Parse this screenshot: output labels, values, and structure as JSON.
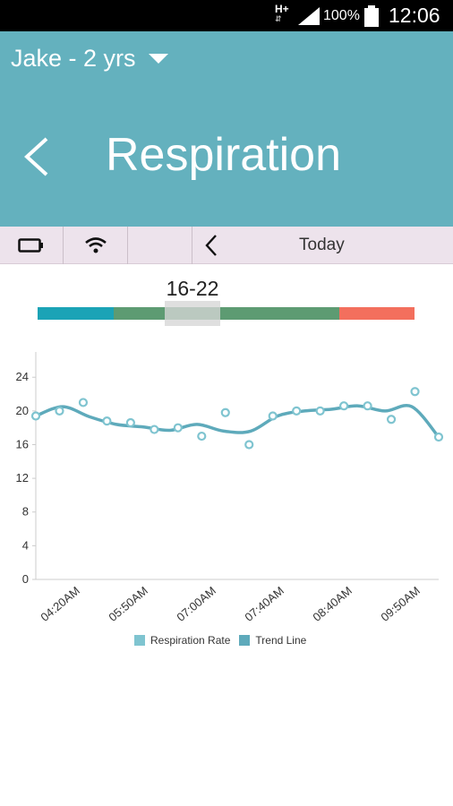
{
  "status_bar": {
    "network": "H+",
    "network_arrows": "⇵",
    "battery_percent": "100%",
    "time": "12:06"
  },
  "header": {
    "profile": "Jake - 2 yrs",
    "title": "Respiration"
  },
  "toolbar": {
    "date_label": "Today"
  },
  "range": {
    "label": "16-22",
    "colors": {
      "low": "#1ba3b6",
      "normal": "#5d9b72",
      "high": "#f36f5d"
    }
  },
  "chart_data": {
    "type": "scatter",
    "y_ticks": [
      0,
      4,
      8,
      12,
      16,
      20,
      24
    ],
    "ylim": [
      0,
      27
    ],
    "x_tick_labels": [
      "04:20AM",
      "05:50AM",
      "07:00AM",
      "07:40AM",
      "08:40AM",
      "09:50AM"
    ],
    "series": [
      {
        "name": "Respiration Rate",
        "color": "#7fc4d0",
        "values": [
          19.4,
          20.0,
          21.0,
          18.8,
          18.6,
          17.8,
          18.0,
          17.0,
          19.8,
          16.0,
          19.4,
          20.0,
          20.0,
          20.6,
          20.6,
          19.0,
          22.3,
          16.9
        ]
      },
      {
        "name": "Trend Line",
        "color": "#5eaabb",
        "values": [
          19.4,
          20.5,
          19.3,
          18.4,
          18.1,
          17.7,
          18.4,
          17.6,
          17.6,
          19.4,
          20.0,
          20.2,
          20.6,
          20.0,
          20.5,
          16.9
        ]
      }
    ]
  }
}
